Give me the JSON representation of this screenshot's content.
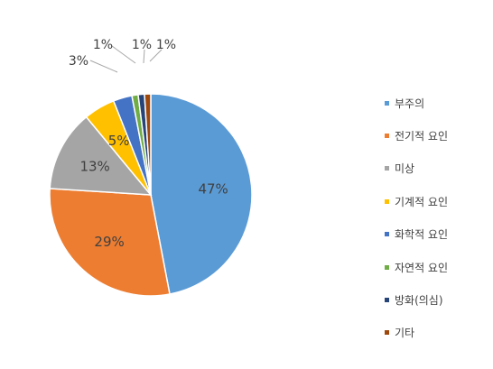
{
  "chart_data": {
    "type": "pie",
    "slices": [
      {
        "label": "부주의",
        "value": 47,
        "data_label": "47%",
        "color": "#5b9bd5"
      },
      {
        "label": "전기적 요인",
        "value": 29,
        "data_label": "29%",
        "color": "#ed7d31"
      },
      {
        "label": "미상",
        "value": 13,
        "data_label": "13%",
        "color": "#a5a5a5"
      },
      {
        "label": "기계적 요인",
        "value": 5,
        "data_label": "5%",
        "color": "#ffc000"
      },
      {
        "label": "화학적 요인",
        "value": 3,
        "data_label": "3%",
        "color": "#4472c4"
      },
      {
        "label": "자연적 요인",
        "value": 1,
        "data_label": "1%",
        "color": "#70ad47"
      },
      {
        "label": "방화(의심)",
        "value": 1,
        "data_label": "1%",
        "color": "#264478"
      },
      {
        "label": "기타",
        "value": 1,
        "data_label": "1%",
        "color": "#9e480e"
      }
    ],
    "legend_position": "right",
    "start": "top, clockwise"
  }
}
